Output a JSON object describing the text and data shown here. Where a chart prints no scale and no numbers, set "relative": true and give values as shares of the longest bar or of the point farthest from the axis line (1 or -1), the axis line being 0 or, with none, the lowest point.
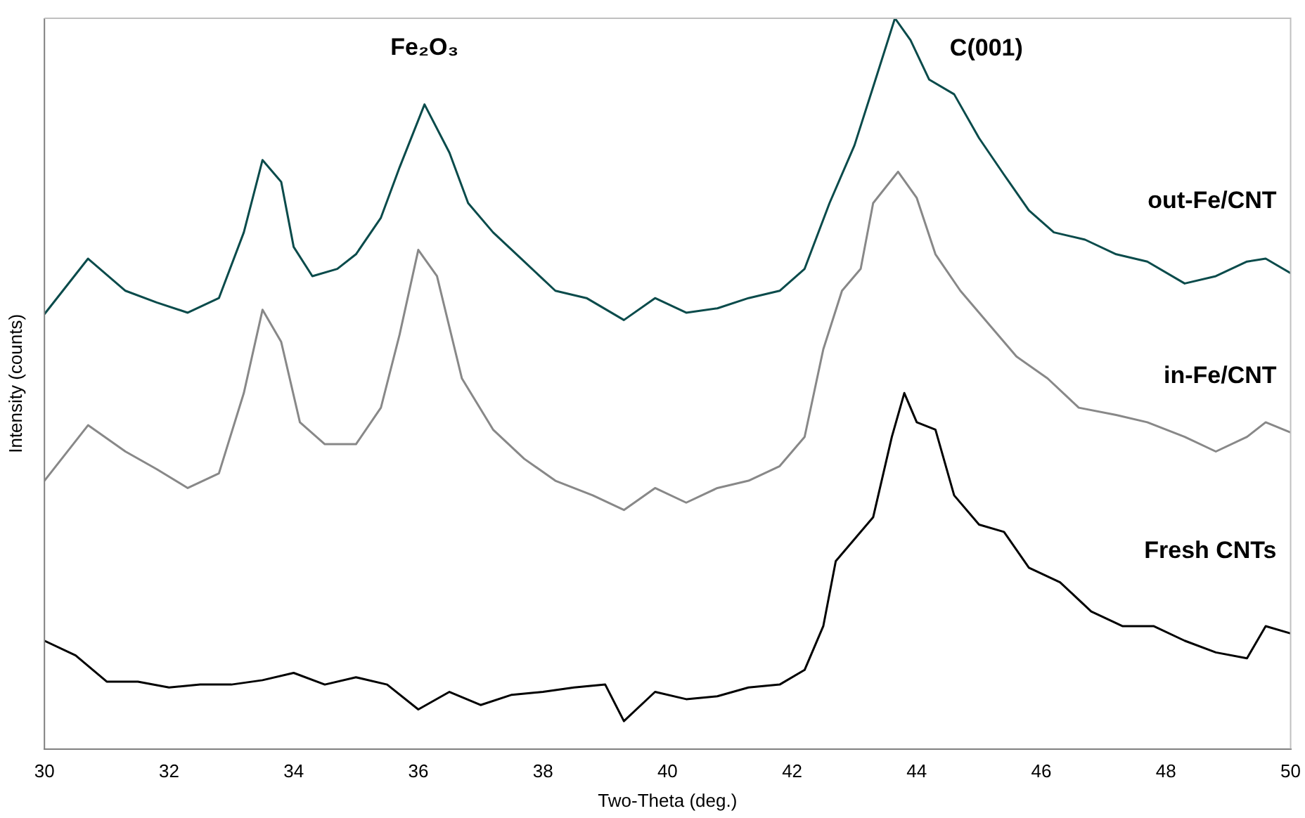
{
  "chart_data": {
    "type": "line",
    "relative": true,
    "xlabel": "Two-Theta (deg.)",
    "ylabel": "Intensity (counts)",
    "xlim": [
      30,
      50
    ],
    "xticks": [
      30,
      32,
      34,
      36,
      38,
      40,
      42,
      44,
      46,
      48,
      50
    ],
    "grid": false,
    "legend": false,
    "marker": "none",
    "line_style": "solid",
    "annotations": [
      {
        "text": "Fe₂O₃",
        "x": 36.1,
        "y": 0.882
      },
      {
        "text": "C(001)",
        "x": 43.65,
        "y": 1
      }
    ],
    "series": [
      {
        "name": "out-Fe/CNT",
        "color": "#0a4b4b",
        "x": [
          30,
          30.7,
          31.3,
          31.8,
          32.3,
          32.8,
          33.2,
          33.5,
          33.8,
          34.0,
          34.3,
          34.7,
          35.0,
          35.4,
          35.7,
          36.1,
          36.5,
          36.8,
          37.2,
          37.7,
          38.2,
          38.7,
          39.3,
          39.8,
          40.3,
          40.8,
          41.3,
          41.8,
          42.2,
          42.6,
          43.0,
          43.3,
          43.65,
          43.9,
          44.2,
          44.6,
          45.0,
          45.4,
          45.8,
          46.2,
          46.7,
          47.2,
          47.7,
          48.3,
          48.8,
          49.3,
          49.6,
          50
        ],
        "values": [
          0.595,
          0.671,
          0.627,
          0.611,
          0.597,
          0.617,
          0.707,
          0.806,
          0.776,
          0.687,
          0.647,
          0.657,
          0.677,
          0.727,
          0.796,
          0.882,
          0.816,
          0.747,
          0.707,
          0.667,
          0.627,
          0.617,
          0.587,
          0.617,
          0.597,
          0.603,
          0.617,
          0.627,
          0.657,
          0.747,
          0.826,
          0.906,
          1,
          0.97,
          0.916,
          0.896,
          0.836,
          0.786,
          0.737,
          0.707,
          0.697,
          0.677,
          0.667,
          0.637,
          0.647,
          0.667,
          0.671,
          0.651
        ]
      },
      {
        "name": "in-Fe/CNT",
        "color": "#888888",
        "x": [
          30,
          30.7,
          31.3,
          31.8,
          32.3,
          32.8,
          33.2,
          33.5,
          33.8,
          34.1,
          34.5,
          35.0,
          35.4,
          35.7,
          36.0,
          36.3,
          36.7,
          37.2,
          37.7,
          38.2,
          38.8,
          39.3,
          39.8,
          40.3,
          40.8,
          41.3,
          41.8,
          42.2,
          42.5,
          42.8,
          43.1,
          43.3,
          43.7,
          44.0,
          44.3,
          44.7,
          45.2,
          45.6,
          46.1,
          46.6,
          47.2,
          47.7,
          48.3,
          48.8,
          49.3,
          49.6,
          50
        ],
        "values": [
          0.367,
          0.443,
          0.407,
          0.383,
          0.357,
          0.377,
          0.487,
          0.601,
          0.557,
          0.447,
          0.417,
          0.417,
          0.467,
          0.567,
          0.683,
          0.647,
          0.507,
          0.437,
          0.397,
          0.367,
          0.347,
          0.327,
          0.357,
          0.337,
          0.357,
          0.367,
          0.387,
          0.427,
          0.547,
          0.627,
          0.657,
          0.747,
          0.79,
          0.754,
          0.677,
          0.627,
          0.577,
          0.537,
          0.507,
          0.467,
          0.457,
          0.447,
          0.427,
          0.407,
          0.427,
          0.447,
          0.433
        ]
      },
      {
        "name": "Fresh CNTs",
        "color": "#000000",
        "x": [
          30,
          30.5,
          31.0,
          31.5,
          32.0,
          32.5,
          33.0,
          33.5,
          34.0,
          34.5,
          35.0,
          35.5,
          36.0,
          36.5,
          37.0,
          37.5,
          38.0,
          38.5,
          39.0,
          39.3,
          39.8,
          40.3,
          40.8,
          41.3,
          41.8,
          42.2,
          42.5,
          42.7,
          43.0,
          43.3,
          43.6,
          43.8,
          44.0,
          44.3,
          44.6,
          45.0,
          45.4,
          45.8,
          46.3,
          46.8,
          47.3,
          47.8,
          48.3,
          48.8,
          49.3,
          49.6,
          50
        ],
        "values": [
          0.148,
          0.128,
          0.092,
          0.092,
          0.084,
          0.088,
          0.088,
          0.094,
          0.104,
          0.088,
          0.098,
          0.088,
          0.054,
          0.078,
          0.06,
          0.074,
          0.078,
          0.084,
          0.088,
          0.038,
          0.078,
          0.068,
          0.072,
          0.084,
          0.088,
          0.108,
          0.168,
          0.257,
          0.287,
          0.317,
          0.427,
          0.487,
          0.447,
          0.437,
          0.347,
          0.307,
          0.297,
          0.248,
          0.228,
          0.188,
          0.168,
          0.168,
          0.148,
          0.132,
          0.124,
          0.168,
          0.158
        ]
      }
    ]
  }
}
